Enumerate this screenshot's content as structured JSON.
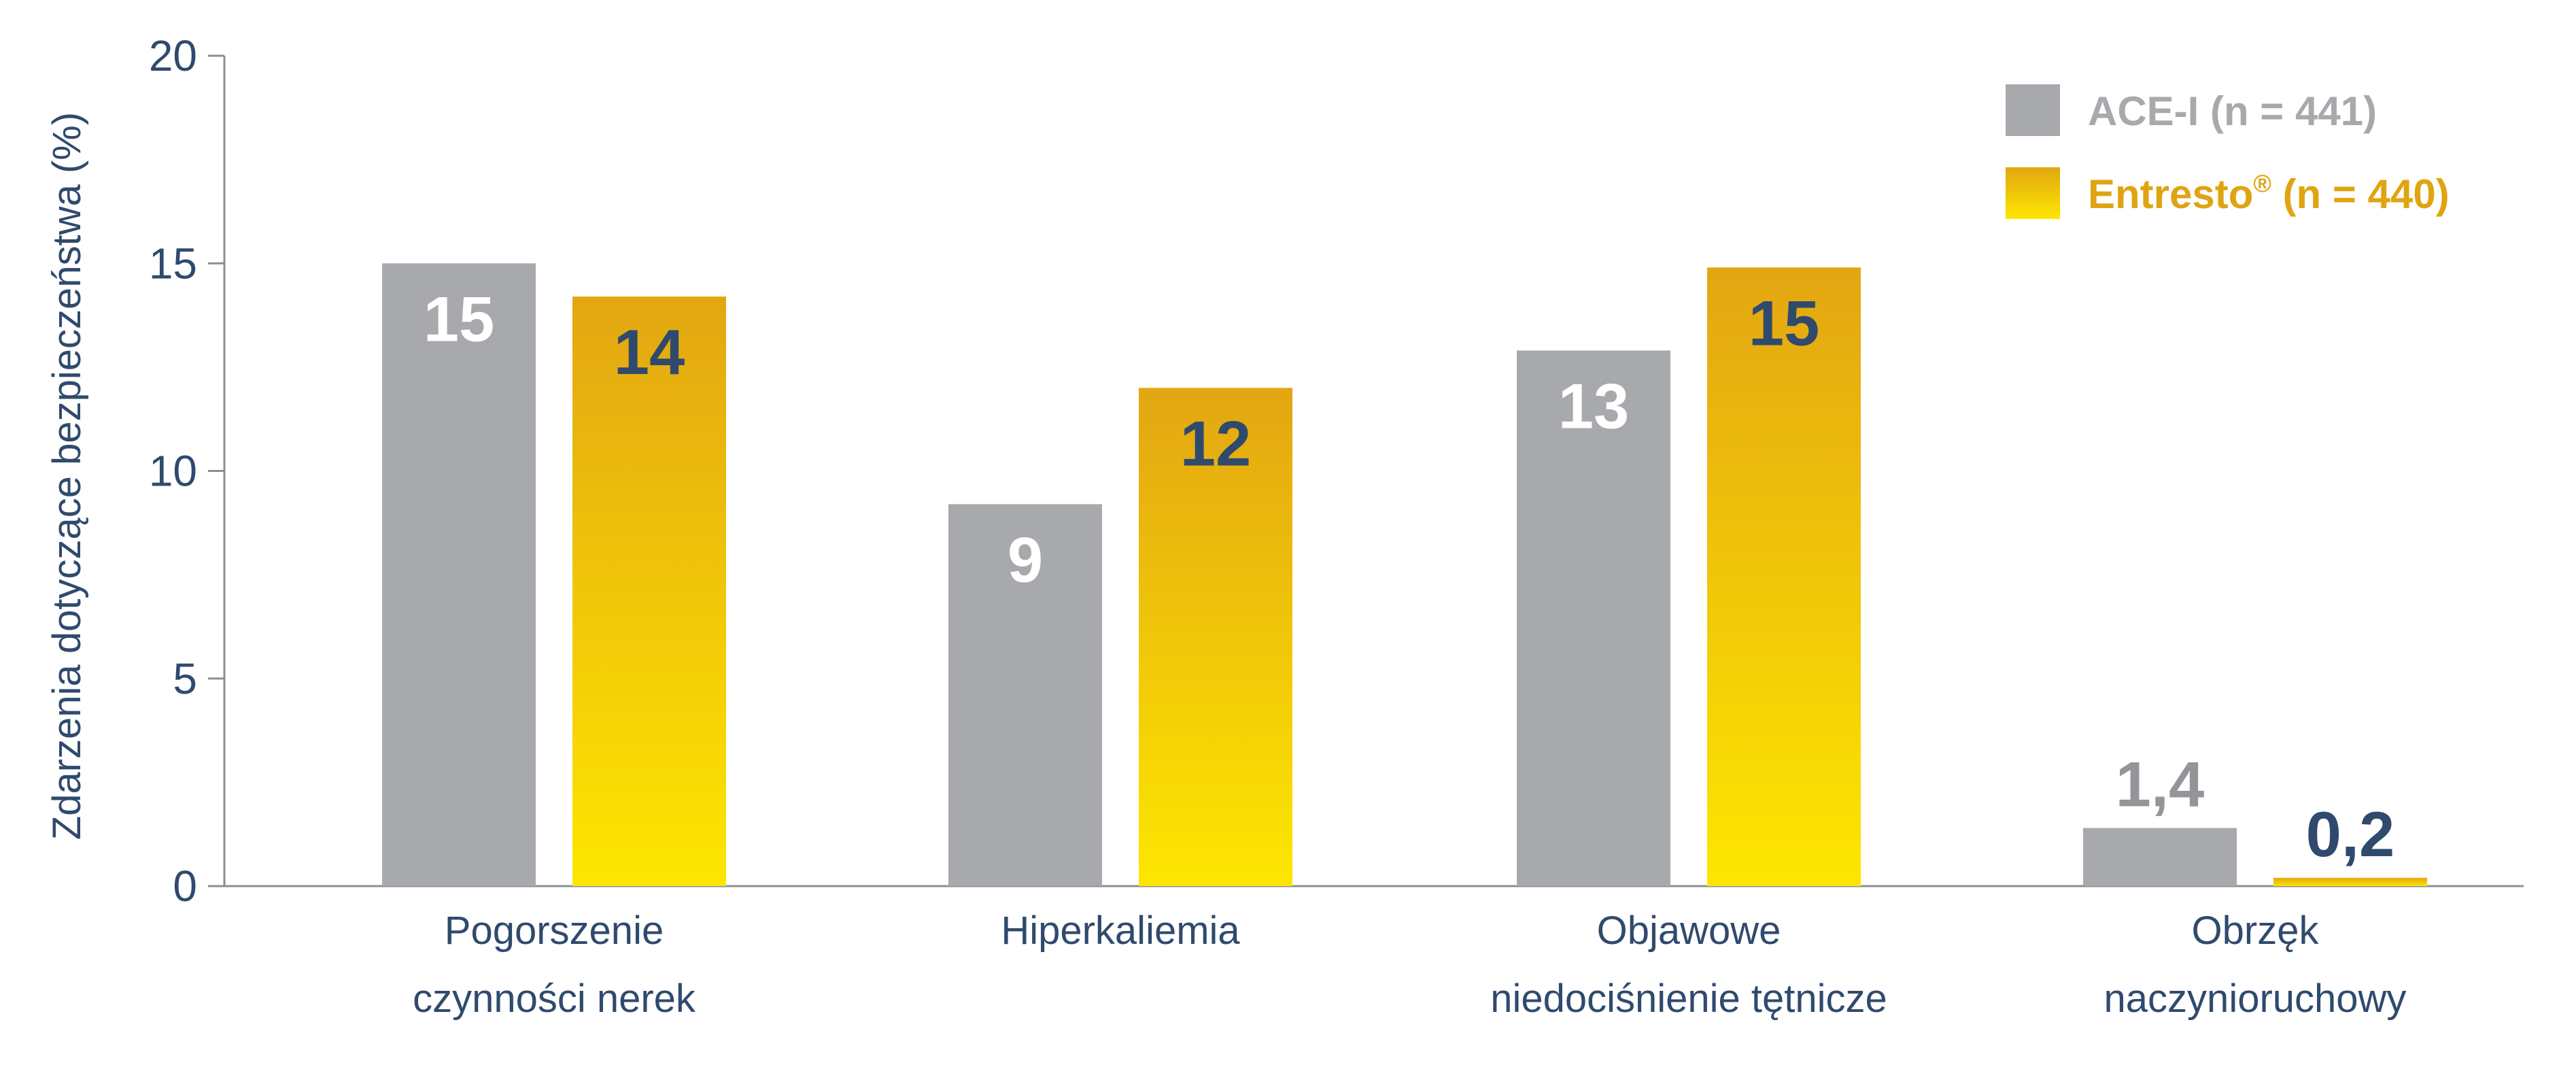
{
  "chart_data": {
    "type": "bar",
    "categories": [
      [
        "Pogorszenie",
        "czynności nerek"
      ],
      [
        "Hiperkaliemia"
      ],
      [
        "Objawowe",
        "niedociśnienie tętnicze"
      ],
      [
        "Obrzęk",
        "naczynioruchowy"
      ]
    ],
    "series": [
      {
        "name_main": "ACE-I (n = 441)",
        "name_sup": "",
        "color": "#a7a9ac",
        "label_color_inside": "#ffffff",
        "label_color_outside": "#939598",
        "values": [
          15,
          9.2,
          12.9,
          1.4
        ],
        "labels": [
          "15",
          "9",
          "13",
          "1,4"
        ]
      },
      {
        "name_main": "Entresto",
        "name_sup": "®",
        "name_tail": " (n = 440)",
        "color_top": "#e3a612",
        "color_bottom": "#fde600",
        "legend_text_color": "#e0a412",
        "label_color_inside": "#2f4a6d",
        "label_color_outside": "#2f4a6d",
        "values": [
          14.2,
          12,
          14.9,
          0.2
        ],
        "labels": [
          "14",
          "12",
          "15",
          "0,2"
        ]
      }
    ],
    "ylabel": "Zdarzenia dotyczące bezpieczeństwa (%)",
    "ylim": [
      0,
      20
    ],
    "yticks": [
      0,
      5,
      10,
      15,
      20
    ],
    "ytick_labels": [
      "0",
      "5",
      "10",
      "15",
      "20"
    ],
    "grid": false,
    "legend_position": "top-right"
  }
}
